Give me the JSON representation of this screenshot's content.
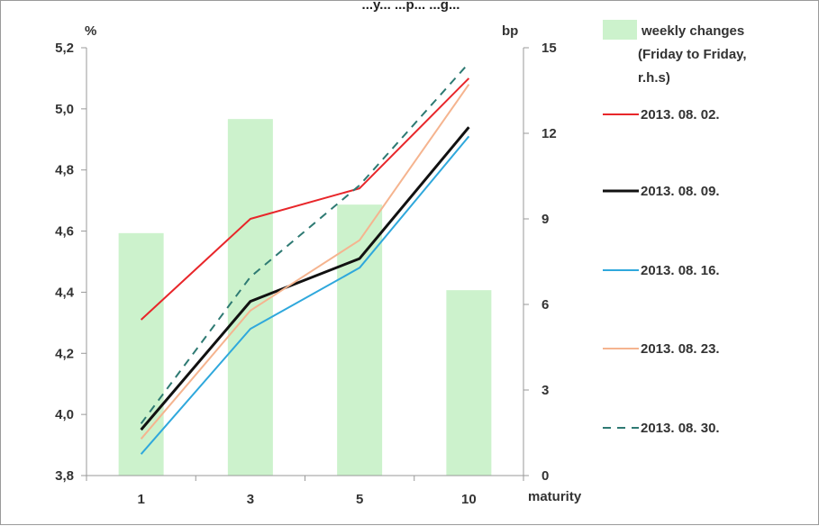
{
  "chart_data": {
    "type": "bar+line",
    "title": "",
    "top_text": "...y... ...p... ...g...",
    "categories": [
      "1",
      "3",
      "5",
      "10"
    ],
    "xlabel": "maturity",
    "y_left": {
      "unit": "%",
      "range": [
        3.8,
        5.2
      ],
      "ticks": [
        "3,8",
        "4,0",
        "4,2",
        "4,4",
        "4,6",
        "4,8",
        "5,0",
        "5,2"
      ]
    },
    "y_right": {
      "unit": "bp",
      "range": [
        0,
        15
      ],
      "ticks": [
        "0",
        "3",
        "6",
        "9",
        "12",
        "15"
      ]
    },
    "bars": {
      "name": "weekly changes (Friday to Friday, r.h.s)",
      "legend_lines": [
        "weekly changes",
        "(Friday to Friday,",
        "r.h.s)"
      ],
      "axis": "right",
      "color": "#ccf2cc",
      "values": [
        8.5,
        12.5,
        9.5,
        6.5
      ]
    },
    "series": [
      {
        "name": "2013. 08. 02.",
        "color": "#e8262a",
        "style": "solid",
        "width": 2,
        "values": [
          4.31,
          4.64,
          4.74,
          5.1
        ]
      },
      {
        "name": "2013. 08. 09.",
        "color": "#111111",
        "style": "solid",
        "width": 3,
        "values": [
          3.95,
          4.37,
          4.51,
          4.94
        ]
      },
      {
        "name": "2013. 08. 16.",
        "color": "#2fa8dc",
        "style": "solid",
        "width": 2,
        "values": [
          3.87,
          4.28,
          4.48,
          4.91
        ]
      },
      {
        "name": "2013. 08. 23.",
        "color": "#f5b48f",
        "style": "solid",
        "width": 2,
        "values": [
          3.92,
          4.34,
          4.57,
          5.08
        ]
      },
      {
        "name": "2013. 08. 30.",
        "color": "#2e7a73",
        "style": "dashed",
        "width": 2,
        "values": [
          3.97,
          4.45,
          4.75,
          5.15
        ]
      }
    ],
    "grid": false,
    "legend": "right"
  }
}
